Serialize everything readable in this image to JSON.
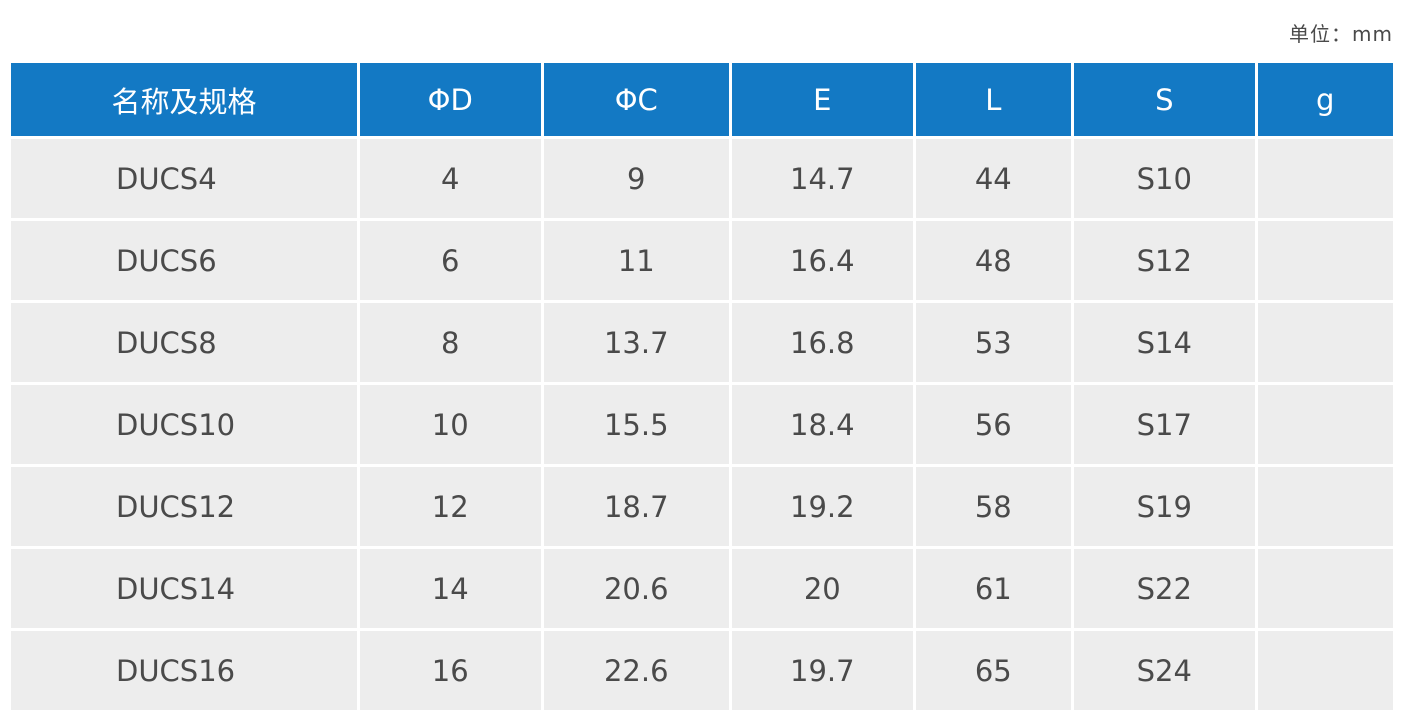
{
  "unit_label": "单位：mm",
  "table": {
    "headers": [
      "名称及规格",
      "ΦD",
      "ΦC",
      "E",
      "L",
      "S",
      "g"
    ],
    "rows": [
      [
        "DUCS4",
        "4",
        "9",
        "14.7",
        "44",
        "S10",
        ""
      ],
      [
        "DUCS6",
        "6",
        "11",
        "16.4",
        "48",
        "S12",
        ""
      ],
      [
        "DUCS8",
        "8",
        "13.7",
        "16.8",
        "53",
        "S14",
        ""
      ],
      [
        "DUCS10",
        "10",
        "15.5",
        "18.4",
        "56",
        "S17",
        ""
      ],
      [
        "DUCS12",
        "12",
        "18.7",
        "19.2",
        "58",
        "S19",
        ""
      ],
      [
        "DUCS14",
        "14",
        "20.6",
        "20",
        "61",
        "S22",
        ""
      ],
      [
        "DUCS16",
        "16",
        "22.6",
        "19.7",
        "65",
        "S24",
        ""
      ]
    ]
  },
  "colors": {
    "header_background": "#1379c4",
    "header_text": "#ffffff",
    "cell_background": "#ededed",
    "cell_text": "#4a4a4a"
  }
}
